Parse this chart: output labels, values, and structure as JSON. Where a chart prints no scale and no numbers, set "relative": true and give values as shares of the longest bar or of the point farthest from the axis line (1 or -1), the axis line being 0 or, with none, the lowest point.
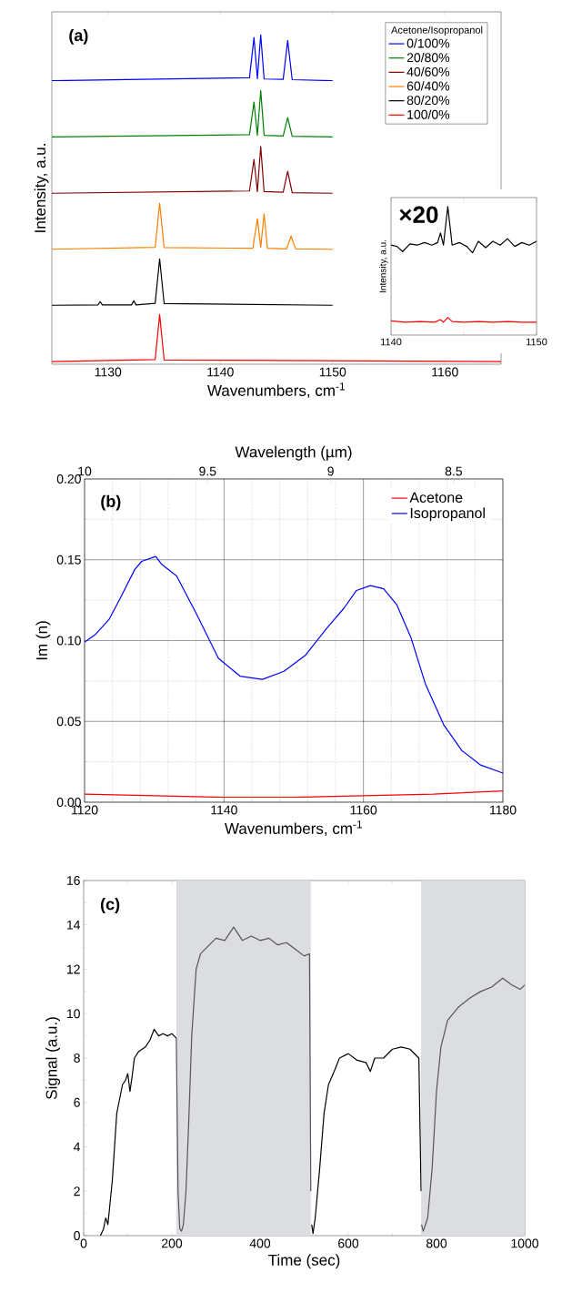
{
  "chart_data": [
    {
      "type": "line",
      "relative": true,
      "xlabel": "Wavenumbers, cm$^{-1}$",
      "ylabel": "Intensity, a.u.",
      "legend_title": "Acetone/Isopropanol",
      "legend": "top right",
      "annotations": [
        "(a)"
      ],
      "xlim": [
        1125,
        1165
      ],
      "xticks": [
        1130,
        1140,
        1150,
        1160
      ],
      "series": [
        {
          "name": "0/100%",
          "color": "#0000ff",
          "x": [
            1125,
            1142.6,
            1143.0,
            1143.3,
            1143.6,
            1143.9,
            1145.6,
            1146.0,
            1146.4,
            1150
          ],
          "values": [
            0.861,
            0.87,
            0.992,
            0.867,
            1.0,
            0.866,
            0.865,
            0.983,
            0.864,
            0.861
          ]
        },
        {
          "name": "20/80%",
          "color": "#008000",
          "x": [
            1125,
            1142.6,
            1143.0,
            1143.3,
            1143.6,
            1143.9,
            1145.6,
            1146.0,
            1146.4,
            1150
          ],
          "values": [
            0.69,
            0.697,
            0.796,
            0.695,
            0.831,
            0.695,
            0.693,
            0.749,
            0.692,
            0.69
          ]
        },
        {
          "name": "40/60%",
          "color": "#800000",
          "x": [
            1125,
            1142.6,
            1143.0,
            1143.3,
            1143.6,
            1143.9,
            1145.6,
            1146.0,
            1146.4,
            1150
          ],
          "values": [
            0.519,
            0.526,
            0.622,
            0.524,
            0.661,
            0.524,
            0.522,
            0.586,
            0.521,
            0.519
          ]
        },
        {
          "name": "60/40%",
          "color": "#ff8000",
          "x": [
            1125,
            1134.2,
            1134.6,
            1135.0,
            1142.9,
            1143.3,
            1143.6,
            1143.9,
            1144.2,
            1145.9,
            1146.3,
            1146.7,
            1150
          ],
          "values": [
            0.349,
            0.355,
            0.489,
            0.354,
            0.352,
            0.442,
            0.355,
            0.456,
            0.352,
            0.35,
            0.389,
            0.35,
            0.349
          ]
        },
        {
          "name": "80/20%",
          "color": "#000000",
          "x": [
            1125,
            1129.1,
            1129.3,
            1129.5,
            1132.1,
            1132.3,
            1132.5,
            1134.2,
            1134.6,
            1135.0,
            1150
          ],
          "values": [
            0.179,
            0.18,
            0.19,
            0.18,
            0.18,
            0.193,
            0.18,
            0.185,
            0.32,
            0.184,
            0.179
          ]
        },
        {
          "name": "100/0%",
          "color": "#ff0000",
          "x": [
            1125,
            1134.2,
            1134.6,
            1135.0,
            1165
          ],
          "values": [
            0.008,
            0.014,
            0.151,
            0.013,
            0.008
          ]
        }
      ]
    },
    {
      "type": "line",
      "relative": true,
      "ylabel": "Intensity, a.u.",
      "annotations": [
        "×20"
      ],
      "xlim": [
        1140,
        1150
      ],
      "xticks": [
        1140,
        {
          "value": 1145,
          "label": null
        },
        1150
      ],
      "series": [
        {
          "color": "#000000",
          "x": [
            1140,
            1140.4,
            1140.8,
            1141.3,
            1141.8,
            1142.3,
            1142.8,
            1143.2,
            1143.4,
            1143.6,
            1143.9,
            1144.2,
            1144.7,
            1145.2,
            1145.6,
            1146.0,
            1146.5,
            1147.0,
            1147.5,
            1148.0,
            1148.5,
            1149.0,
            1149.5,
            1150
          ],
          "values": [
            0.7,
            0.69,
            0.65,
            0.71,
            0.7,
            0.72,
            0.7,
            0.72,
            0.795,
            0.7,
            1.0,
            0.7,
            0.72,
            0.69,
            0.64,
            0.73,
            0.68,
            0.73,
            0.7,
            0.75,
            0.69,
            0.72,
            0.7,
            0.73
          ]
        },
        {
          "color": "#ff0000",
          "x": [
            1140,
            1141,
            1142,
            1143,
            1143.4,
            1143.6,
            1143.9,
            1144.2,
            1145,
            1146,
            1147,
            1148,
            1149,
            1150
          ],
          "values": [
            0.11,
            0.1,
            0.105,
            0.1,
            0.12,
            0.1,
            0.137,
            0.105,
            0.1,
            0.105,
            0.1,
            0.105,
            0.1,
            0.1
          ]
        }
      ]
    },
    {
      "type": "line",
      "xlabel": "Wavenumbers, cm$^{-1}$",
      "ylabel": "Im (n)",
      "x2label": "Wavelength (µm)",
      "legend": "top right",
      "grid": true,
      "annotations": [
        "(b)"
      ],
      "xlim": [
        1120,
        1180
      ],
      "xticks": [
        1120,
        1140,
        1160,
        1180
      ],
      "ylim": [
        0,
        0.2
      ],
      "yticks": [
        {
          "value": 0,
          "label": "0.00"
        },
        0.05,
        {
          "value": 0.1,
          "label": "0.10"
        },
        0.15,
        {
          "value": 0.2,
          "label": "0.20"
        }
      ],
      "x2lim": [
        10,
        8.3
      ],
      "x2ticks": [
        10,
        9.5,
        9,
        8.5
      ],
      "series": [
        {
          "name": "Acetone",
          "color": "#ff0000",
          "x": [
            1120,
            1130,
            1140,
            1150,
            1160,
            1170,
            1180
          ],
          "values": [
            0.005,
            0.004,
            0.003,
            0.003,
            0.004,
            0.005,
            0.007
          ]
        },
        {
          "name": "Isopropanol",
          "color": "#0000ff",
          "x": [
            1120,
            1121.6,
            1123.5,
            1125.1,
            1127.2,
            1128.2,
            1130.2,
            1131.1,
            1133.2,
            1136.1,
            1139.2,
            1142.3,
            1145.5,
            1148.6,
            1151.7,
            1154.8,
            1157.2,
            1159.0,
            1161.0,
            1162.9,
            1164.8,
            1166.8,
            1168.9,
            1171.5,
            1174.1,
            1176.8,
            1180
          ],
          "values": [
            0.099,
            0.104,
            0.113,
            0.126,
            0.144,
            0.149,
            0.152,
            0.147,
            0.14,
            0.116,
            0.089,
            0.078,
            0.076,
            0.081,
            0.091,
            0.108,
            0.12,
            0.131,
            0.134,
            0.132,
            0.122,
            0.102,
            0.073,
            0.048,
            0.032,
            0.023,
            0.018
          ]
        }
      ]
    },
    {
      "type": "line",
      "xlabel": "Time (sec)",
      "ylabel": "Signal (a.u.)",
      "annotations": [
        "(c)"
      ],
      "xlim": [
        0,
        1000
      ],
      "xticks": [
        0,
        200,
        400,
        600,
        800,
        1000
      ],
      "ylim": [
        0,
        16
      ],
      "yticks": [
        0,
        2,
        4,
        6,
        8,
        10,
        12,
        14,
        16
      ],
      "bands": [
        {
          "axis": "x",
          "from": 210,
          "to": 515,
          "color": "#dcdde0"
        },
        {
          "axis": "x",
          "from": 765,
          "to": 1000,
          "color": "#dcdde0"
        }
      ],
      "series": [
        {
          "color": "#000000",
          "x": [
            38,
            45,
            50,
            55,
            60,
            65,
            70,
            75,
            80,
            88,
            95,
            100,
            105,
            110,
            115,
            125,
            140,
            150,
            160,
            170,
            180,
            190,
            200,
            210,
            360,
            517,
            520,
            525,
            535,
            545,
            555,
            570,
            580,
            600,
            620,
            640,
            650,
            660,
            680,
            700,
            720,
            740,
            760,
            765
          ],
          "values": [
            0,
            0.3,
            0.8,
            0.5,
            1.5,
            2.5,
            4,
            5.5,
            6,
            6.8,
            7,
            7.3,
            6.5,
            7.2,
            8,
            8.3,
            8.5,
            8.8,
            9.3,
            9,
            9.1,
            9,
            9.1,
            8.9,
            null,
            0.5,
            0.1,
            0.8,
            3,
            5.5,
            6.8,
            7.5,
            8,
            8.2,
            7.9,
            7.8,
            7.4,
            8,
            8,
            8.4,
            8.5,
            8.4,
            8,
            2
          ]
        },
        {
          "color": "#555555",
          "x": [
            210,
            214,
            218,
            222,
            226,
            232,
            238,
            245,
            255,
            265,
            280,
            300,
            320,
            340,
            360,
            380,
            400,
            420,
            440,
            460,
            480,
            500,
            512,
            515,
            640,
            766,
            770,
            780,
            790,
            800,
            810,
            825,
            850,
            875,
            900,
            925,
            950,
            970,
            990,
            1000
          ],
          "values": [
            8.9,
            2,
            0.3,
            0.2,
            0.5,
            2,
            5,
            9,
            12,
            12.7,
            13,
            13.4,
            13.3,
            13.9,
            13.3,
            13.5,
            13.3,
            13.4,
            13.1,
            13.2,
            12.9,
            12.6,
            12.7,
            2,
            null,
            0.5,
            0.2,
            0.8,
            3,
            6.5,
            8.5,
            9.7,
            10.3,
            10.7,
            11,
            11.2,
            11.6,
            11.3,
            11.1,
            11.3
          ]
        }
      ]
    }
  ]
}
